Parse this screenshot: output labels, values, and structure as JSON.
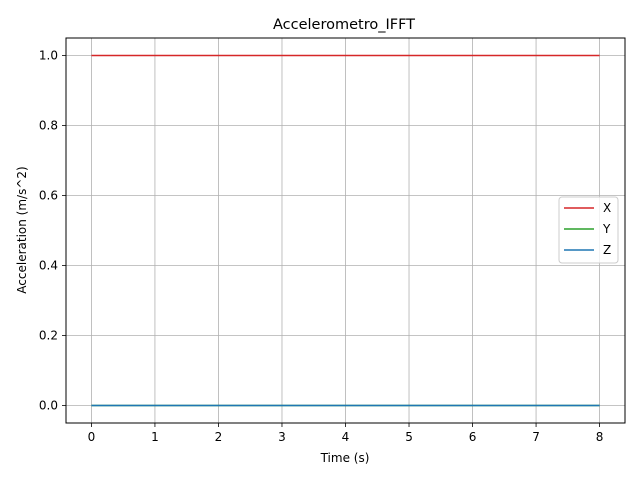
{
  "chart_data": {
    "type": "line",
    "title": "Accelerometro_IFFT",
    "xlabel": "Time (s)",
    "ylabel": "Acceleration (m/s^2)",
    "xlim": [
      -0.4,
      8.4
    ],
    "ylim": [
      -0.05,
      1.05
    ],
    "xticks": [
      0,
      1,
      2,
      3,
      4,
      5,
      6,
      7,
      8
    ],
    "xtick_labels": [
      "0",
      "1",
      "2",
      "3",
      "4",
      "5",
      "6",
      "7",
      "8"
    ],
    "yticks": [
      0.0,
      0.2,
      0.4,
      0.6,
      0.8,
      1.0
    ],
    "ytick_labels": [
      "0.0",
      "0.2",
      "0.4",
      "0.6",
      "0.8",
      "1.0"
    ],
    "grid": true,
    "legend_position": "center-right",
    "series": [
      {
        "name": "X",
        "color": "#d62728",
        "x": [
          0,
          8
        ],
        "y": [
          1.0,
          1.0
        ]
      },
      {
        "name": "Y",
        "color": "#2ca02c",
        "x": [
          0,
          8
        ],
        "y": [
          0.0,
          0.0
        ]
      },
      {
        "name": "Z",
        "color": "#1f77b4",
        "x": [
          0,
          8
        ],
        "y": [
          0.0,
          0.0
        ]
      }
    ]
  }
}
